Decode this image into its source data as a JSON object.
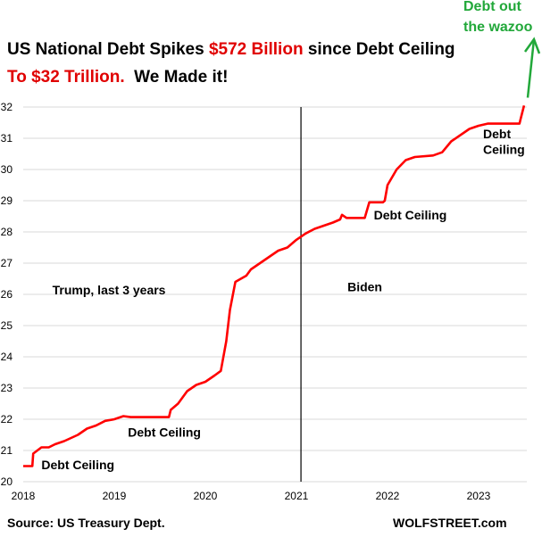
{
  "title": {
    "line1_a": "US National Debt Spikes ",
    "line1_b": "$572 Billion",
    "line1_c": " since Debt Ceiling",
    "line2_a": "To $32 Trillion.",
    "line2_b": "  We Made it!"
  },
  "wazoo": {
    "line1": "Debt out",
    "line2": "the wazoo"
  },
  "footer": {
    "source": "Source: US Treasury Dept.",
    "site": "WOLFSTREET.com"
  },
  "colors": {
    "series": "#ff0000",
    "title_highlight": "#e00000",
    "wazoo": "#22a83a",
    "divider": "#000000"
  },
  "chart_data": {
    "type": "line",
    "ylim": [
      20,
      32
    ],
    "xlim": [
      2018.0,
      2023.53
    ],
    "x_ticks": [
      "2018",
      "2019",
      "2020",
      "2021",
      "2022",
      "2023"
    ],
    "y_ticks": [
      "20",
      "21",
      "22",
      "23",
      "24",
      "25",
      "26",
      "27",
      "28",
      "29",
      "30",
      "31",
      "32"
    ],
    "grid": "horizontal",
    "divider_x": 2021.05,
    "series": [
      {
        "x": [
          2018.0,
          2018.1,
          2018.11,
          2018.2,
          2018.28,
          2018.35,
          2018.45,
          2018.6,
          2018.7,
          2018.8,
          2018.9,
          2019.0,
          2019.1,
          2019.18,
          2019.25,
          2019.4,
          2019.6,
          2019.62,
          2019.7,
          2019.75,
          2019.8,
          2019.85,
          2019.9,
          2020.0,
          2020.1,
          2020.17,
          2020.23,
          2020.27,
          2020.33,
          2020.45,
          2020.5,
          2020.6,
          2020.7,
          2020.8,
          2020.9,
          2021.0,
          2021.1,
          2021.2,
          2021.3,
          2021.4,
          2021.48,
          2021.5,
          2021.55,
          2021.6,
          2021.75,
          2021.8,
          2021.95,
          2021.97,
          2022.0,
          2022.1,
          2022.2,
          2022.3,
          2022.5,
          2022.6,
          2022.7,
          2022.9,
          2023.0,
          2023.1,
          2023.45,
          2023.46,
          2023.5
        ],
        "y": [
          20.5,
          20.5,
          20.9,
          21.1,
          21.1,
          21.2,
          21.3,
          21.5,
          21.7,
          21.8,
          21.95,
          22.0,
          22.1,
          22.07,
          22.07,
          22.07,
          22.07,
          22.3,
          22.5,
          22.7,
          22.9,
          23.0,
          23.1,
          23.2,
          23.4,
          23.55,
          24.5,
          25.5,
          26.4,
          26.6,
          26.8,
          27.0,
          27.2,
          27.4,
          27.5,
          27.75,
          27.95,
          28.1,
          28.2,
          28.3,
          28.4,
          28.55,
          28.45,
          28.45,
          28.45,
          28.95,
          28.95,
          29.0,
          29.5,
          30.0,
          30.3,
          30.4,
          30.45,
          30.55,
          30.9,
          31.3,
          31.4,
          31.47,
          31.47,
          31.6,
          32.05
        ]
      }
    ],
    "annotations": [
      {
        "label": "Debt Ceiling",
        "x": 2018.2,
        "y": 20.4
      },
      {
        "label": "Debt Ceiling",
        "x": 2019.15,
        "y": 21.45
      },
      {
        "label": "Debt Ceiling",
        "x": 2021.85,
        "y": 28.4
      },
      {
        "label": "Debt",
        "x": 2023.05,
        "y": 31.0
      },
      {
        "label": "Ceiling",
        "x": 2023.05,
        "y": 30.5
      },
      {
        "label": "Trump, last 3 years",
        "x": 2018.32,
        "y": 26.0
      },
      {
        "label": "Biden",
        "x": 2021.56,
        "y": 26.1
      }
    ]
  }
}
